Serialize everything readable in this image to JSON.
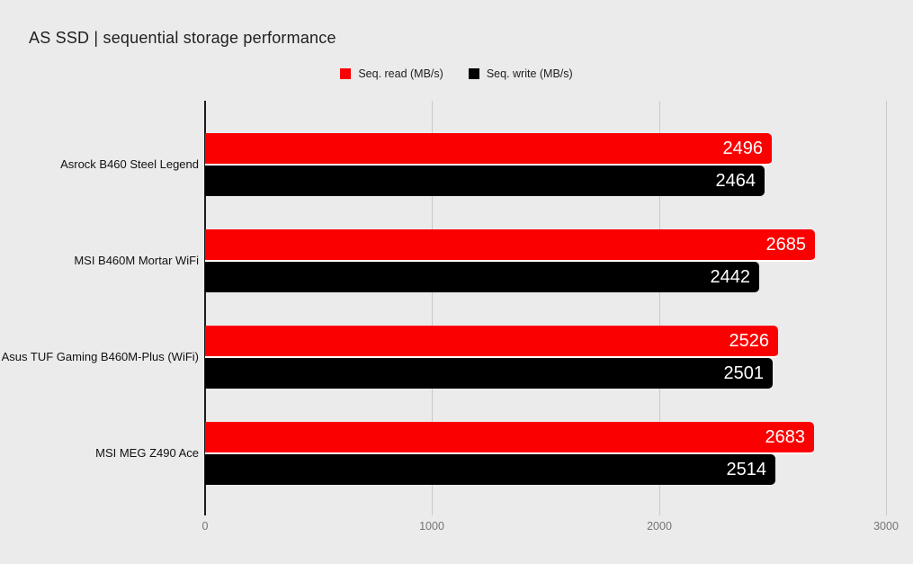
{
  "colors": {
    "background": "#ebebeb",
    "grid": "#c9c9c9",
    "axis": "#1c1c1c",
    "tick_label": "#757575",
    "title_text": "#1f1f1f",
    "bar_value_text": "#ffffff"
  },
  "chart_data": {
    "type": "bar",
    "orientation": "horizontal",
    "title": "AS SSD | sequential storage performance",
    "categories": [
      "Asrock B460 Steel Legend",
      "MSI B460M Mortar WiFi",
      "Asus TUF Gaming B460M-Plus (WiFi)",
      "MSI MEG Z490 Ace"
    ],
    "series": [
      {
        "name": "Seq. read (MB/s)",
        "color": "#fb0000",
        "values": [
          2496,
          2685,
          2526,
          2683
        ]
      },
      {
        "name": "Seq. write (MB/s)",
        "color": "#000000",
        "values": [
          2464,
          2442,
          2501,
          2514
        ]
      }
    ],
    "x_ticks": [
      0,
      1000,
      2000,
      3000
    ],
    "xlim": [
      0,
      3000
    ],
    "grid": true,
    "legend_position": "top-center",
    "value_labels": "inside-end"
  }
}
